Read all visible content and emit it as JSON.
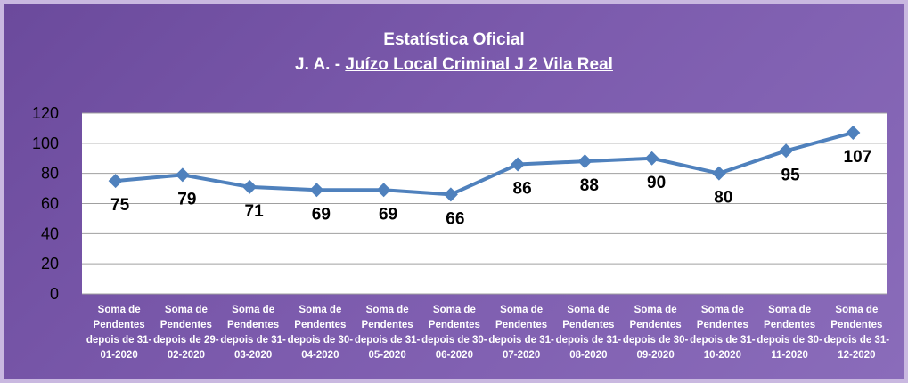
{
  "chart_data": {
    "type": "line",
    "title": "Estatística Oficial",
    "subtitle": [
      "J. A. - ",
      "Juízo Local Criminal J 2 Vila Real"
    ],
    "categories": [
      "Soma de Pendentes depois de 31-01-2020",
      "Soma de Pendentes depois de 29-02-2020",
      "Soma de Pendentes depois de 31-03-2020",
      "Soma de Pendentes depois de 30-04-2020",
      "Soma de Pendentes depois de 31-05-2020",
      "Soma de Pendentes depois de 30-06-2020",
      "Soma de Pendentes depois de 31-07-2020",
      "Soma de Pendentes depois de 31-08-2020",
      "Soma de Pendentes depois de 30-09-2020",
      "Soma de Pendentes depois de 31-10-2020",
      "Soma de Pendentes depois de 30-11-2020",
      "Soma de Pendentes depois de 31-12-2020"
    ],
    "values": [
      75,
      79,
      71,
      69,
      69,
      66,
      86,
      88,
      90,
      80,
      95,
      107
    ],
    "color": "#4f81bd",
    "ylim": [
      0,
      120
    ],
    "yticks": [
      0,
      20,
      40,
      60,
      80,
      100,
      120
    ],
    "grid": true
  }
}
